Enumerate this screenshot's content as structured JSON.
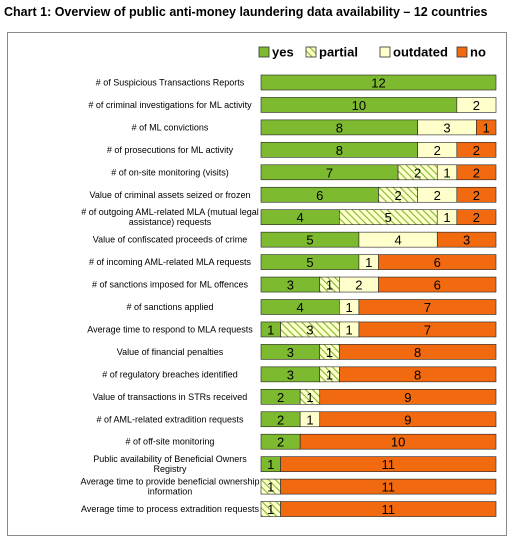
{
  "chart_data": {
    "type": "bar",
    "stacked": true,
    "orientation": "horizontal",
    "title": "Chart 1: Overview of public anti-money laundering data availability – 12 countries",
    "xlim": [
      0,
      12
    ],
    "legend_position": "top-right",
    "grid": false,
    "categories": [
      "# of Suspicious Transactions Reports",
      "# of criminal investigations for ML activity",
      "# of ML convictions",
      "# of prosecutions for ML activity",
      "# of on-site monitoring (visits)",
      "Value of criminal assets seized or frozen",
      "# of outgoing AML-related MLA (mutual legal assistance) requests",
      "Value of confiscated proceeds of crime",
      "# of incoming AML-related MLA requests",
      "# of sanctions imposed for ML offences",
      "# of sanctions applied",
      "Average time to respond to MLA requests",
      "Value of financial penalties",
      "# of regulatory breaches identified",
      "Value of transactions in STRs received",
      "# of AML-related extradition requests",
      "# of off-site monitoring",
      "Public availability of Beneficial Owners Registry",
      "Average time to provide beneficial ownership information",
      "Average time to process extradition requests"
    ],
    "series": [
      {
        "name": "yes",
        "color": "#7dba2f",
        "pattern": "solid",
        "values": [
          12,
          10,
          8,
          8,
          7,
          6,
          4,
          5,
          5,
          3,
          4,
          1,
          3,
          3,
          2,
          2,
          2,
          1,
          0,
          0
        ]
      },
      {
        "name": "partial",
        "color": "#ffffcc",
        "pattern": "hatched",
        "values": [
          0,
          0,
          0,
          0,
          2,
          2,
          5,
          0,
          0,
          1,
          0,
          3,
          1,
          1,
          1,
          0,
          0,
          0,
          1,
          1
        ]
      },
      {
        "name": "outdated",
        "color": "#ffffcc",
        "pattern": "solid",
        "values": [
          0,
          2,
          3,
          2,
          1,
          2,
          1,
          4,
          1,
          2,
          1,
          1,
          0,
          0,
          0,
          1,
          0,
          0,
          0,
          0
        ]
      },
      {
        "name": "no",
        "color": "#f26a10",
        "pattern": "solid",
        "values": [
          0,
          0,
          1,
          2,
          2,
          2,
          2,
          3,
          6,
          6,
          7,
          7,
          8,
          8,
          9,
          9,
          10,
          11,
          11,
          11
        ]
      }
    ]
  }
}
